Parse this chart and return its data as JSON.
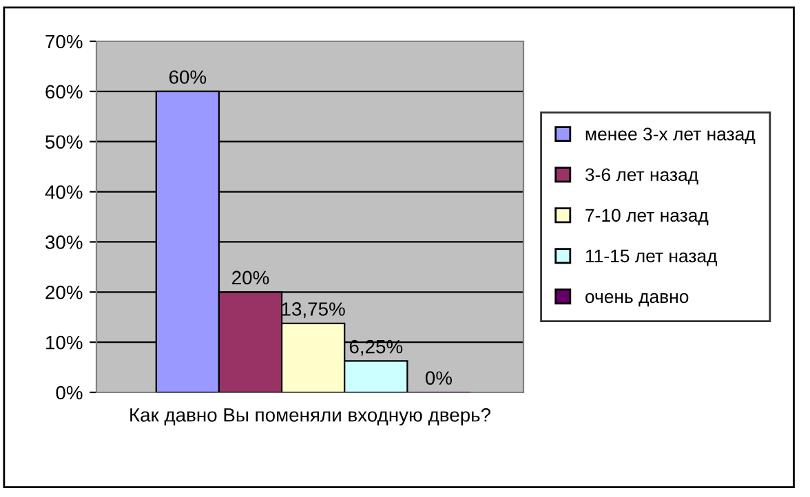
{
  "chart_data": {
    "type": "bar",
    "categories": [
      "Как давно Вы поменяли входную дверь?"
    ],
    "series": [
      {
        "name": "менее 3-х лет назад",
        "color": "#9999ff",
        "values": [
          60
        ],
        "value_labels": [
          "60%"
        ]
      },
      {
        "name": "3-6 лет назад",
        "color": "#993366",
        "values": [
          20
        ],
        "value_labels": [
          "20%"
        ]
      },
      {
        "name": "7-10 лет назад",
        "color": "#ffffcc",
        "values": [
          13.75
        ],
        "value_labels": [
          "13,75%"
        ]
      },
      {
        "name": "11-15 лет назад",
        "color": "#ccffff",
        "values": [
          6.25
        ],
        "value_labels": [
          "6,25%"
        ]
      },
      {
        "name": "очень давно",
        "color": "#660066",
        "values": [
          0
        ],
        "value_labels": [
          "0%"
        ]
      }
    ],
    "ylim": [
      0,
      70
    ],
    "yticks": [
      {
        "value": 0,
        "label": "0%"
      },
      {
        "value": 10,
        "label": "10%"
      },
      {
        "value": 20,
        "label": "20%"
      },
      {
        "value": 30,
        "label": "30%"
      },
      {
        "value": 40,
        "label": "40%"
      },
      {
        "value": 50,
        "label": "50%"
      },
      {
        "value": 60,
        "label": "60%"
      },
      {
        "value": 70,
        "label": "70%"
      }
    ],
    "grid": "y",
    "legend": "right"
  }
}
